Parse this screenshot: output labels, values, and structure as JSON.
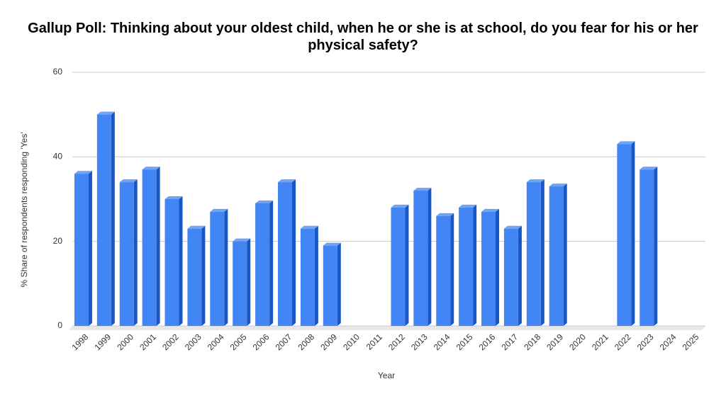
{
  "chart_data": {
    "type": "bar",
    "title": "Gallup Poll: Thinking about your oldest child, when he or she is at school, do you fear for his or her physical safety?",
    "x_label": "Year",
    "y_label": "% Share of respondents responding 'Yes'",
    "categories": [
      "1998",
      "1999",
      "2000",
      "2001",
      "2002",
      "2003",
      "2004",
      "2005",
      "2006",
      "2007",
      "2008",
      "2009",
      "2010",
      "2011",
      "2012",
      "2013",
      "2014",
      "2015",
      "2016",
      "2017",
      "2018",
      "2019",
      "2020",
      "2021",
      "2022",
      "2023",
      "2024",
      "2025"
    ],
    "values": [
      36,
      50,
      34,
      37,
      30,
      23,
      27,
      20,
      29,
      34,
      23,
      19,
      null,
      null,
      28,
      32,
      26,
      28,
      27,
      23,
      34,
      33,
      null,
      null,
      43,
      37,
      null,
      null
    ],
    "color": "#4285f4",
    "ylim": [
      0,
      60
    ],
    "yticks": [
      0,
      20,
      40,
      60
    ],
    "grid": true
  }
}
